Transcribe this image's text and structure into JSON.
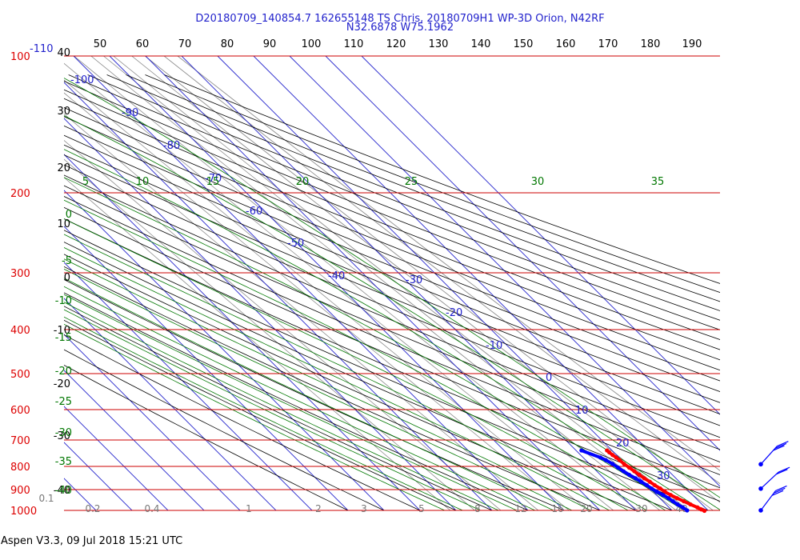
{
  "title": {
    "line1": "D20180709_140854.7 162655148 TS Chris, 20180709H1 WP-3D Orion, N42RF",
    "line2": "N32.6878 W75.1962"
  },
  "footer": "Aspen V3.3, 09 Jul 2018  15:21 UTC",
  "colors": {
    "isobar": "#cc0000",
    "pressure_label": "#dd0000",
    "isotherm": "#2222cc",
    "dry_adiabat": "#000000",
    "moist_adiabat": "#007700",
    "mixing_ratio": "#888888",
    "temperature_trace": "#ff0000",
    "dewpoint_trace": "#0000ff"
  },
  "chart_data": {
    "type": "line",
    "diagram": "skew-T log-P",
    "pressure_levels": [
      {
        "p": 100,
        "label": "100"
      },
      {
        "p": 200,
        "label": "200"
      },
      {
        "p": 300,
        "label": "300"
      },
      {
        "p": 400,
        "label": "400"
      },
      {
        "p": 500,
        "label": "500"
      },
      {
        "p": 600,
        "label": "600"
      },
      {
        "p": 700,
        "label": "700"
      },
      {
        "p": 800,
        "label": "800"
      },
      {
        "p": 900,
        "label": "900"
      },
      {
        "p": 1000,
        "label": "1000"
      }
    ],
    "top_scale": [
      "50",
      "60",
      "70",
      "80",
      "90",
      "100",
      "110",
      "120",
      "130",
      "140",
      "150",
      "160",
      "170",
      "180",
      "190"
    ],
    "top_left_scale_label": "-110",
    "isotherm_labels": [
      "-100",
      "-90",
      "-80",
      "-70",
      "-60",
      "-50",
      "-40",
      "-30",
      "-20",
      "-10",
      "0",
      "10",
      "20",
      "30"
    ],
    "dry_adiabat_labels": [
      "40",
      "30",
      "20",
      "10",
      "0",
      "-10",
      "-20",
      "-30",
      "-40"
    ],
    "moist_adiabat_top_labels": [
      "5",
      "10",
      "15",
      "20",
      "25",
      "30",
      "35"
    ],
    "moist_adiabat_left_labels": [
      "0",
      "-5",
      "-10",
      "-15",
      "-20",
      "-25",
      "-30",
      "-35",
      "-40"
    ],
    "mixing_ratio_labels": [
      "0.1",
      "0.2",
      "0.4",
      "1",
      "2",
      "3",
      "5",
      "8",
      "12",
      "16",
      "20",
      "30",
      "40"
    ],
    "series": [
      {
        "name": "Temperature",
        "color": "#ff0000",
        "points": [
          {
            "p": 738,
            "t": 18.6
          },
          {
            "p": 745,
            "t": 18.7
          },
          {
            "p": 755,
            "t": 18.9
          },
          {
            "p": 765,
            "t": 19.2
          },
          {
            "p": 775,
            "t": 19.4
          },
          {
            "p": 790,
            "t": 19.6
          },
          {
            "p": 805,
            "t": 20.0
          },
          {
            "p": 820,
            "t": 20.4
          },
          {
            "p": 835,
            "t": 20.8
          },
          {
            "p": 850,
            "t": 21.2
          },
          {
            "p": 865,
            "t": 21.8
          },
          {
            "p": 880,
            "t": 22.2
          },
          {
            "p": 895,
            "t": 22.8
          },
          {
            "p": 910,
            "t": 23.2
          },
          {
            "p": 925,
            "t": 23.9
          },
          {
            "p": 940,
            "t": 24.8
          },
          {
            "p": 955,
            "t": 25.8
          },
          {
            "p": 970,
            "t": 26.8
          },
          {
            "p": 985,
            "t": 27.9
          },
          {
            "p": 995,
            "t": 28.4
          },
          {
            "p": 1002,
            "t": 28.9
          }
        ]
      },
      {
        "name": "Dewpoint",
        "color": "#0000ff",
        "points": [
          {
            "p": 738,
            "t": 11.5
          },
          {
            "p": 765,
            "t": 14.8
          },
          {
            "p": 775,
            "t": 15.6
          },
          {
            "p": 790,
            "t": 16.4
          },
          {
            "p": 805,
            "t": 16.9
          },
          {
            "p": 820,
            "t": 17.4
          },
          {
            "p": 835,
            "t": 18.0
          },
          {
            "p": 850,
            "t": 18.8
          },
          {
            "p": 865,
            "t": 19.4
          },
          {
            "p": 880,
            "t": 20.0
          },
          {
            "p": 895,
            "t": 20.4
          },
          {
            "p": 910,
            "t": 21.0
          },
          {
            "p": 925,
            "t": 21.8
          },
          {
            "p": 940,
            "t": 22.4
          },
          {
            "p": 955,
            "t": 22.8
          },
          {
            "p": 970,
            "t": 23.2
          },
          {
            "p": 985,
            "t": 23.8
          },
          {
            "p": 1000,
            "t": 24.2
          }
        ]
      }
    ],
    "wind_barbs": [
      {
        "p": 760,
        "direction": 225,
        "speed": 25
      },
      {
        "p": 860,
        "direction": 230,
        "speed": 15
      },
      {
        "p": 960,
        "direction": 220,
        "speed": 30
      }
    ],
    "grid": true,
    "legend": "none"
  }
}
